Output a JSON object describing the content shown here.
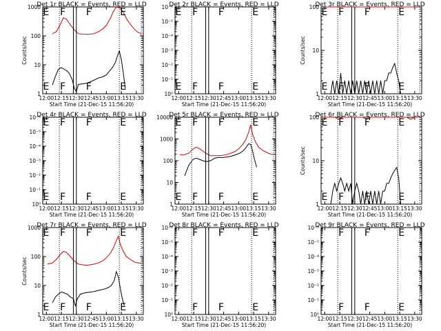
{
  "colors": {
    "events": "#000000",
    "lld": "#e00000",
    "axes": "#000000"
  },
  "chart_data": [
    {
      "type": "line",
      "scale": "log",
      "ylim": [
        1,
        1000
      ],
      "title": "Det 1r BLACK = Events, RED = LLD",
      "xlabel": "Start Time (21-Dec-15 11:56:20)",
      "ylabel": "Counts/sec",
      "xticks": [
        "12:00",
        "12:15",
        "12:30",
        "12:45",
        "13:00",
        "13:15",
        "13:30"
      ],
      "yticks": [
        "1",
        "10",
        "100",
        "1000"
      ],
      "markers": [
        {
          "label": "E",
          "x": "11:56"
        },
        {
          "label": "F",
          "x": "12:13"
        },
        {
          "label": "F",
          "x": "12:39"
        },
        {
          "label": "E",
          "x": "13:13"
        }
      ],
      "series": [
        {
          "color": "lld",
          "x": [
            "12:06",
            "12:10",
            "12:14",
            "12:17",
            "12:20",
            "12:24",
            "12:28",
            "12:32",
            "12:36",
            "12:40",
            "12:44",
            "12:48",
            "12:52",
            "12:56",
            "13:00",
            "13:04",
            "13:07",
            "13:10",
            "13:14",
            "13:17",
            "13:20",
            "13:24",
            "13:28",
            "13:32",
            "13:35"
          ],
          "y": [
            120,
            140,
            250,
            420,
            380,
            240,
            160,
            120,
            115,
            113,
            115,
            120,
            140,
            170,
            230,
            400,
            700,
            1000,
            900,
            650,
            400,
            250,
            170,
            130,
            120
          ]
        },
        {
          "color": "events",
          "x": [
            "12:06",
            "12:09",
            "12:12",
            "12:15",
            "12:18",
            "12:21",
            "12:23",
            "12:26",
            "12:28",
            "12:30",
            "12:32",
            "12:36",
            "12:40",
            "12:44",
            "12:48",
            "12:52",
            "12:56",
            "13:00",
            "13:03",
            "13:06",
            "13:09",
            "13:11",
            "13:13",
            "13:15",
            "13:17",
            "13:19"
          ],
          "y": [
            2,
            4,
            7,
            8,
            7,
            6,
            5,
            3,
            1.5,
            1.2,
            2.1,
            2.2,
            2.3,
            2.6,
            3,
            3.5,
            3.8,
            4.5,
            6,
            8,
            12,
            20,
            30,
            15,
            5,
            1.5
          ]
        }
      ]
    },
    {
      "type": "line",
      "scale": "log",
      "ylim": [
        1,
        1000000
      ],
      "title": "Det 2r BLACK = Events, RED = LLD",
      "xlabel": "Start Time (21-Dec-15 11:56:20)",
      "ylabel": "",
      "xticks": [
        "12:00",
        "12:15",
        "12:30",
        "12:45",
        "13:00",
        "13:15",
        "13:30"
      ],
      "yticks": [
        "10⁰",
        "10⁻¹",
        "10⁻²",
        "10⁻³",
        "10⁻⁴",
        "10⁻⁵",
        "10⁻⁶"
      ],
      "markers": [
        {
          "label": "E",
          "x": "11:56"
        },
        {
          "label": "F",
          "x": "12:13"
        },
        {
          "label": "F",
          "x": "12:39"
        },
        {
          "label": "E",
          "x": "13:13"
        }
      ],
      "series": []
    },
    {
      "type": "line",
      "scale": "log",
      "ylim": [
        1,
        100
      ],
      "title": "Det 3r BLACK = Events, RED = LLD",
      "xlabel": "Start Time (21-Dec-15 11:56:20)",
      "ylabel": "Counts/sec",
      "xticks": [
        "12:00",
        "12:15",
        "12:30",
        "12:45",
        "13:00",
        "13:15",
        "13:30"
      ],
      "yticks": [
        "1",
        "10",
        "100"
      ],
      "markers": [
        {
          "label": "E",
          "x": "11:56"
        },
        {
          "label": "F",
          "x": "12:13"
        },
        {
          "label": "F",
          "x": "12:39"
        },
        {
          "label": "E",
          "x": "13:13"
        }
      ],
      "series": [
        {
          "color": "lld",
          "x": [
            "12:00",
            "12:10",
            "12:20",
            "12:30",
            "12:40",
            "12:50",
            "13:00",
            "13:10",
            "13:20",
            "13:30",
            "13:35"
          ],
          "y": [
            100,
            100,
            100,
            100,
            100,
            100,
            100,
            100,
            100,
            100,
            100
          ]
        },
        {
          "color": "events",
          "x": [
            "12:06",
            "12:08",
            "12:10",
            "12:12",
            "12:14",
            "12:16",
            "12:18",
            "12:20",
            "12:22",
            "12:24",
            "12:26",
            "12:28",
            "12:30",
            "12:32",
            "12:34",
            "12:36",
            "12:38",
            "12:40",
            "12:42",
            "12:44",
            "12:46",
            "12:48",
            "12:50",
            "12:52",
            "12:54",
            "12:56",
            "12:58",
            "13:00",
            "13:02",
            "13:04",
            "13:06",
            "13:08",
            "13:10",
            "13:12",
            "13:14",
            "13:16"
          ],
          "y": [
            1,
            2,
            1,
            2,
            1,
            3,
            1,
            2,
            1,
            2,
            1,
            2,
            1,
            2,
            1,
            2,
            1,
            2,
            1,
            2,
            1,
            2,
            1,
            2,
            1,
            2,
            1,
            2,
            2,
            3,
            3,
            4,
            5,
            3,
            2,
            1
          ]
        }
      ]
    },
    {
      "type": "line",
      "scale": "log",
      "ylim": [
        1,
        1000000
      ],
      "title": "Det 4r BLACK = Events, RED = LLD",
      "xlabel": "Start Time (21-Dec-15 11:56:20)",
      "ylabel": "",
      "xticks": [
        "12:00",
        "12:15",
        "12:30",
        "12:45",
        "13:00",
        "13:15",
        "13:30"
      ],
      "yticks": [
        "10⁰",
        "10⁻¹",
        "10⁻²",
        "10⁻³",
        "10⁻⁴",
        "10⁻⁵",
        "10⁻⁶"
      ],
      "markers": [
        {
          "label": "E",
          "x": "11:56"
        },
        {
          "label": "F",
          "x": "12:13"
        },
        {
          "label": "F",
          "x": "12:39"
        },
        {
          "label": "E",
          "x": "13:13"
        }
      ],
      "series": []
    },
    {
      "type": "line",
      "scale": "log",
      "ylim": [
        1,
        10000
      ],
      "title": "Det 5r BLACK = Events, RED = LLD",
      "xlabel": "Start Time (21-Dec-15 11:56:20)",
      "ylabel": "",
      "xticks": [
        "12:00",
        "12:15",
        "12:30",
        "12:45",
        "13:00",
        "13:15",
        "13:30"
      ],
      "yticks": [
        "1",
        "10",
        "100",
        "1000",
        "10000"
      ],
      "markers": [
        {
          "label": "E",
          "x": "11:56"
        },
        {
          "label": "F",
          "x": "12:13"
        },
        {
          "label": "F",
          "x": "12:39"
        },
        {
          "label": "E",
          "x": "13:13"
        }
      ],
      "series": [
        {
          "color": "lld",
          "x": [
            "12:01",
            "12:06",
            "12:10",
            "12:14",
            "12:17",
            "12:20",
            "12:24",
            "12:28",
            "12:32",
            "12:36",
            "12:40",
            "12:44",
            "12:48",
            "12:52",
            "12:56",
            "13:00",
            "13:04",
            "13:07",
            "13:10",
            "13:12",
            "13:14",
            "13:17",
            "13:20",
            "13:24",
            "13:28",
            "13:32",
            "13:35"
          ],
          "y": [
            190,
            190,
            220,
            330,
            420,
            380,
            280,
            210,
            170,
            170,
            170,
            175,
            190,
            220,
            260,
            350,
            550,
            900,
            2000,
            4500,
            1600,
            700,
            420,
            300,
            240,
            200,
            190
          ]
        },
        {
          "color": "events",
          "x": [
            "12:06",
            "12:10",
            "12:14",
            "12:17",
            "12:20",
            "12:24",
            "12:28",
            "12:32",
            "12:36",
            "12:40",
            "12:44",
            "12:48",
            "12:52",
            "12:56",
            "13:00",
            "13:04",
            "13:07",
            "13:10",
            "13:12",
            "13:14",
            "13:16",
            "13:18"
          ],
          "y": [
            20,
            60,
            110,
            130,
            120,
            100,
            90,
            100,
            130,
            140,
            140,
            145,
            160,
            180,
            210,
            270,
            380,
            600,
            560,
            280,
            110,
            50
          ]
        }
      ]
    },
    {
      "type": "line",
      "scale": "log",
      "ylim": [
        1,
        100
      ],
      "title": "Det 6r BLACK = Events, RED = LLD",
      "xlabel": "Start Time (21-Dec-15 11:56:20)",
      "ylabel": "Counts/sec",
      "xticks": [
        "12:00",
        "12:15",
        "12:30",
        "12:45",
        "13:00",
        "13:15",
        "13:30"
      ],
      "yticks": [
        "1",
        "10",
        "100"
      ],
      "markers": [
        {
          "label": "E",
          "x": "11:56"
        },
        {
          "label": "F",
          "x": "12:13"
        },
        {
          "label": "F",
          "x": "12:39"
        },
        {
          "label": "E",
          "x": "13:13"
        }
      ],
      "series": [
        {
          "color": "lld",
          "x": [
            "11:58",
            "12:02",
            "12:06",
            "12:10",
            "12:14",
            "12:18",
            "12:22",
            "12:26",
            "12:30",
            "12:34",
            "12:38",
            "12:42",
            "12:46",
            "12:50",
            "12:54",
            "12:58",
            "13:02",
            "13:06",
            "13:10",
            "13:14",
            "13:18",
            "13:22",
            "13:26",
            "13:30",
            "13:35"
          ],
          "y": [
            100,
            100,
            100,
            100,
            90,
            100,
            100,
            100,
            100,
            100,
            100,
            90,
            100,
            100,
            100,
            100,
            100,
            100,
            100,
            100,
            100,
            100,
            90,
            100,
            100
          ]
        },
        {
          "color": "events",
          "x": [
            "12:06",
            "12:08",
            "12:10",
            "12:12",
            "12:14",
            "12:16",
            "12:18",
            "12:20",
            "12:22",
            "12:24",
            "12:26",
            "12:28",
            "12:30",
            "12:32",
            "12:34",
            "12:36",
            "12:38",
            "12:40",
            "12:42",
            "12:44",
            "12:46",
            "12:48",
            "12:50",
            "12:52",
            "12:54",
            "12:56",
            "12:58",
            "13:00",
            "13:02",
            "13:04",
            "13:06",
            "13:08",
            "13:10",
            "13:12",
            "13:14",
            "13:16"
          ],
          "y": [
            1,
            2,
            3,
            2,
            3,
            4,
            3,
            2,
            3,
            2,
            3,
            1,
            2,
            3,
            2,
            1,
            2,
            1,
            2,
            1,
            2,
            1,
            2,
            1,
            2,
            1,
            2,
            2,
            3,
            3,
            4,
            5,
            6,
            7,
            4,
            1
          ]
        }
      ]
    },
    {
      "type": "line",
      "scale": "log",
      "ylim": [
        1,
        1000
      ],
      "title": "Det 7r BLACK = Events, RED = LLD",
      "xlabel": "Start Time (21-Dec-15 11:56:20)",
      "ylabel": "Counts/sec",
      "xticks": [
        "12:00",
        "12:15",
        "12:30",
        "12:45",
        "13:00",
        "13:15",
        "13:30"
      ],
      "yticks": [
        "1",
        "10",
        "100",
        "1000"
      ],
      "markers": [
        {
          "label": "E",
          "x": "11:56"
        },
        {
          "label": "F",
          "x": "12:13"
        },
        {
          "label": "F",
          "x": "12:39"
        },
        {
          "label": "E",
          "x": "13:13"
        }
      ],
      "series": [
        {
          "color": "lld",
          "x": [
            "12:01",
            "12:06",
            "12:10",
            "12:14",
            "12:17",
            "12:20",
            "12:24",
            "12:28",
            "12:32",
            "12:36",
            "12:40",
            "12:44",
            "12:48",
            "12:52",
            "12:56",
            "13:00",
            "13:04",
            "13:07",
            "13:10",
            "13:12",
            "13:14",
            "13:17",
            "13:20",
            "13:24",
            "13:28",
            "13:32",
            "13:35"
          ],
          "y": [
            55,
            60,
            80,
            120,
            150,
            140,
            100,
            70,
            55,
            52,
            50,
            52,
            55,
            60,
            70,
            90,
            130,
            200,
            350,
            500,
            260,
            150,
            100,
            80,
            65,
            60,
            58
          ]
        },
        {
          "color": "events",
          "x": [
            "12:06",
            "12:09",
            "12:12",
            "12:15",
            "12:18",
            "12:21",
            "12:24",
            "12:27",
            "12:29",
            "12:31",
            "12:34",
            "12:38",
            "12:42",
            "12:46",
            "12:50",
            "12:54",
            "12:58",
            "13:02",
            "13:05",
            "13:08",
            "13:10",
            "13:12",
            "13:14",
            "13:16",
            "13:18"
          ],
          "y": [
            2.5,
            4,
            5,
            6,
            5.5,
            5,
            4,
            3.5,
            2,
            3.5,
            5,
            5.5,
            5.8,
            6,
            6.5,
            7,
            7.5,
            8.5,
            10,
            15,
            30,
            20,
            8,
            3.5,
            2
          ]
        }
      ]
    },
    {
      "type": "line",
      "scale": "log",
      "ylim": [
        1,
        1000000
      ],
      "title": "Det 8r BLACK = Events, RED = LLD",
      "xlabel": "Start Time (21-Dec-15 11:56:20)",
      "ylabel": "",
      "xticks": [
        "12:00",
        "12:15",
        "12:30",
        "12:45",
        "13:00",
        "13:15",
        "13:30"
      ],
      "yticks": [
        "10⁰",
        "10⁻¹",
        "10⁻²",
        "10⁻³",
        "10⁻⁴",
        "10⁻⁵",
        "10⁻⁶"
      ],
      "markers": [
        {
          "label": "F",
          "x": "12:13"
        },
        {
          "label": "F",
          "x": "12:39"
        },
        {
          "label": "E",
          "x": "13:13"
        }
      ],
      "series": []
    },
    {
      "type": "line",
      "scale": "log",
      "ylim": [
        1,
        1000000
      ],
      "title": "Det 9r BLACK = Events, RED = LLD",
      "xlabel": "Start Time (21-Dec-15 11:56:20)",
      "ylabel": "",
      "xticks": [
        "12:00",
        "12:15",
        "12:30",
        "12:45",
        "13:00",
        "13:15",
        "13:30"
      ],
      "yticks": [
        "10⁰",
        "10⁻¹",
        "10⁻²",
        "10⁻³",
        "10⁻⁴",
        "10⁻⁵",
        "10⁻⁶"
      ],
      "markers": [
        {
          "label": "F",
          "x": "12:13"
        },
        {
          "label": "F",
          "x": "12:39"
        },
        {
          "label": "E",
          "x": "13:13"
        }
      ],
      "series": []
    }
  ]
}
